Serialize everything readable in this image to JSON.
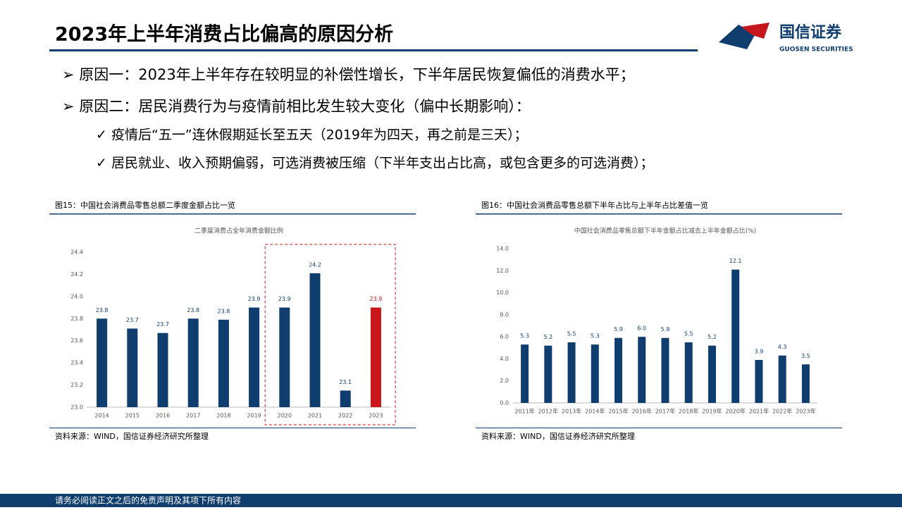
{
  "header": {
    "title": "2023年上半年消费占比偏高的原因分析",
    "logo_cn": "国信证券",
    "logo_en": "GUOSEN SECURITIES"
  },
  "bullets": [
    "➢ 原因一：2023年上半年存在较明显的补偿性增长，下半年居民恢复偏低的消费水平；",
    "➢ 原因二：居民消费行为与疫情前相比发生较大变化（偏中长期影响）："
  ],
  "sub_bullets": [
    "✓ 疫情后“五一”连休假期延长至五天（2019年为四天，再之前是三天）；",
    "✓ 居民就业、收入预期偏弱，可选消费被压缩（下半年支出占比高，或包含更多的可选消费）；"
  ],
  "chart_data": [
    {
      "type": "bar",
      "caption": "图15：中国社会消费品零售总额二季度金额占比一览",
      "title": "二季度消费占全年消费金额比例",
      "source": "资料来源：WIND，国信证券经济研究所整理",
      "categories": [
        "2014",
        "2015",
        "2016",
        "2017",
        "2018",
        "2019",
        "2020",
        "2021",
        "2022",
        "2023"
      ],
      "values": [
        23.8,
        23.71,
        23.67,
        23.8,
        23.79,
        23.9,
        23.9,
        24.21,
        23.15,
        23.9
      ],
      "value_labels": [
        "23.8",
        "23.7",
        "23.7",
        "23.8",
        "23.8",
        "23.9",
        "23.9",
        "24.2",
        "23.1",
        "23.9"
      ],
      "colors": [
        "#0e3d6e",
        "#0e3d6e",
        "#0e3d6e",
        "#0e3d6e",
        "#0e3d6e",
        "#0e3d6e",
        "#0e3d6e",
        "#0e3d6e",
        "#0e3d6e",
        "#c8161d"
      ],
      "ylim": [
        23,
        24.4
      ],
      "yticks": [
        {
          "value": 23,
          "label": "23.0"
        },
        23.2,
        23.4,
        23.6,
        23.8,
        {
          "value": 24,
          "label": "24.0"
        },
        24.2,
        24.4
      ],
      "grid": false
    },
    {
      "type": "bar",
      "caption": "图16：中国社会消费品零售总额下半年占比与上半年占比差值一览",
      "title": "中国社会消费品零售总额下半年金额占比减去上半年金额占比(%)",
      "source": "资料来源：WIND，国信证券经济研究所整理",
      "categories": [
        "2011年",
        "2012年",
        "2013年",
        "2014年",
        "2015年",
        "2016年",
        "2017年",
        "2018年",
        "2019年",
        "2020年",
        "2021年",
        "2022年",
        "2023年"
      ],
      "values": [
        5.3,
        5.2,
        5.5,
        5.3,
        5.9,
        6,
        5.9,
        5.5,
        5.2,
        12.1,
        3.9,
        4.3,
        3.5
      ],
      "value_labels": [
        "5.3",
        "5.2",
        "5.5",
        "5.3",
        "5.9",
        "6.0",
        "5.9",
        "5.5",
        "5.2",
        "12.1",
        "3.9",
        "4.3",
        "3.5"
      ],
      "color": "#0e3d6e",
      "ylim": [
        0,
        14
      ],
      "yticks": [
        {
          "value": 0,
          "label": "0.0"
        },
        {
          "value": 2,
          "label": "2.0"
        },
        {
          "value": 4,
          "label": "4.0"
        },
        {
          "value": 6,
          "label": "6.0"
        },
        {
          "value": 8,
          "label": "8.0"
        },
        {
          "value": 10,
          "label": "10.0"
        },
        {
          "value": 12,
          "label": "12.0"
        },
        {
          "value": 14,
          "label": "14.0"
        }
      ],
      "grid": false
    }
  ],
  "footer": "请务必阅读正文之后的免责声明及其项下所有内容"
}
